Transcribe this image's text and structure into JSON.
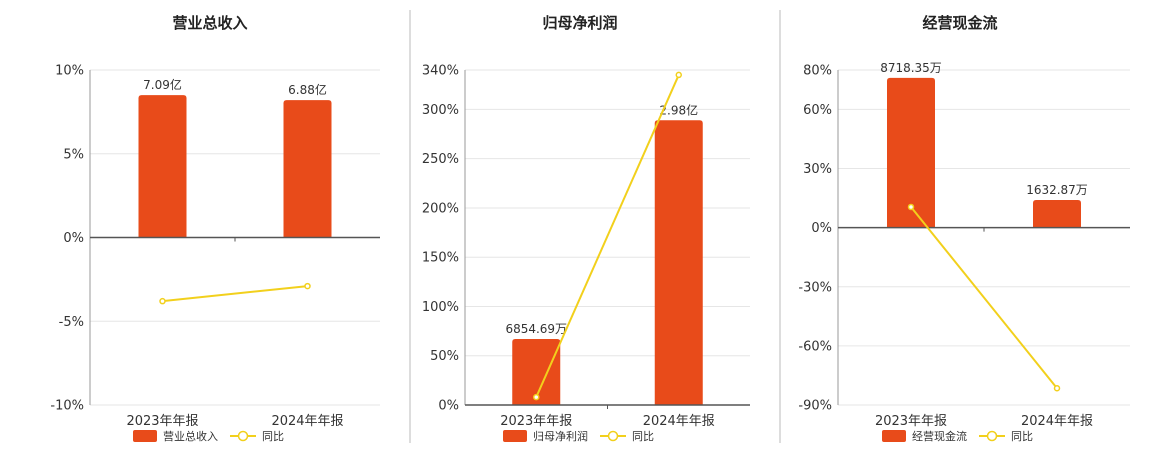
{
  "colors": {
    "bar": "#E84B1A",
    "line": "#F2D01C",
    "axis": "#555555",
    "grid": "#E6E6E6",
    "divider": "#BBBBBB"
  },
  "chart_data": [
    {
      "type": "bar",
      "title": "营业总收入",
      "categories": [
        "2023年年报",
        "2024年年报"
      ],
      "ylim": [
        -10,
        10
      ],
      "yticks": [
        10,
        5,
        0,
        -5,
        -10
      ],
      "grid": true,
      "legend_placement": "bottom",
      "series": [
        {
          "name": "营业总收入",
          "type": "bar",
          "values": [
            8.5,
            8.2
          ],
          "labels": [
            "7.09亿",
            "6.88亿"
          ]
        },
        {
          "name": "同比",
          "type": "line",
          "values": [
            -3.8,
            -2.9
          ]
        }
      ]
    },
    {
      "type": "bar",
      "title": "归母净利润",
      "categories": [
        "2023年年报",
        "2024年年报"
      ],
      "ylim": [
        0,
        340
      ],
      "yticks": [
        340,
        300,
        250,
        200,
        150,
        100,
        50,
        0
      ],
      "grid": true,
      "legend_placement": "bottom",
      "series": [
        {
          "name": "归母净利润",
          "type": "bar",
          "values": [
            67,
            289
          ],
          "labels": [
            "6854.69万",
            "2.98亿"
          ]
        },
        {
          "name": "同比",
          "type": "line",
          "values": [
            8,
            335
          ]
        }
      ]
    },
    {
      "type": "bar",
      "title": "经营现金流",
      "categories": [
        "2023年年报",
        "2024年年报"
      ],
      "ylim": [
        -90,
        80
      ],
      "yticks": [
        80,
        60,
        30,
        0,
        -30,
        -60,
        -90
      ],
      "grid": true,
      "legend_placement": "bottom",
      "series": [
        {
          "name": "经营现金流",
          "type": "bar",
          "values": [
            76,
            14
          ],
          "labels": [
            "8718.35万",
            "1632.87万"
          ]
        },
        {
          "name": "同比",
          "type": "line",
          "values": [
            10.5,
            -81.5
          ]
        }
      ]
    }
  ]
}
